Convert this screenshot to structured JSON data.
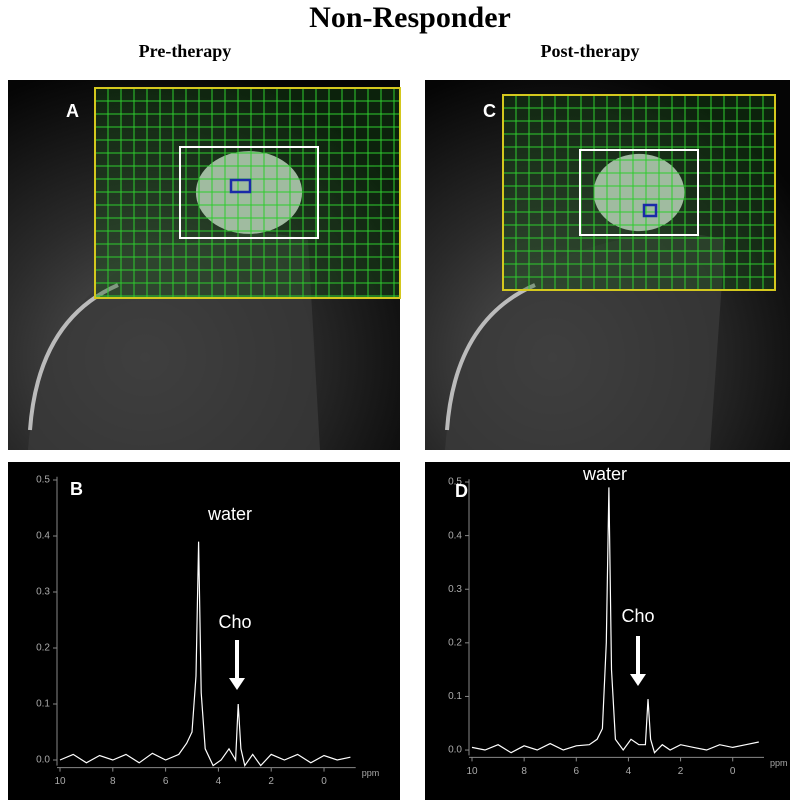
{
  "title": "Non-Responder",
  "panels": [
    {
      "heading": "Pre-therapy",
      "image_label": "A"
    },
    {
      "heading": "Post-therapy",
      "image_label": "C"
    }
  ],
  "chart_data": [
    {
      "type": "line",
      "label": "B",
      "annotations": [
        "water",
        "Cho"
      ],
      "x_label": "ppm",
      "x": [
        10,
        9.5,
        9,
        8.5,
        8,
        7.5,
        7,
        6.5,
        6,
        5.5,
        5.2,
        5.0,
        4.85,
        4.75,
        4.65,
        4.5,
        4.2,
        3.9,
        3.6,
        3.35,
        3.25,
        3.15,
        3.0,
        2.7,
        2.4,
        2,
        1.5,
        1,
        0.5,
        0,
        -0.5,
        -1
      ],
      "series": [
        {
          "color": "#ffffff",
          "values": [
            0.0,
            0.01,
            -0.005,
            0.008,
            0.0,
            0.01,
            -0.005,
            0.012,
            0.0,
            0.01,
            0.03,
            0.05,
            0.15,
            0.39,
            0.12,
            0.02,
            -0.01,
            0.0,
            0.02,
            0.0,
            0.1,
            0.02,
            -0.01,
            0.01,
            -0.01,
            0.01,
            0.0,
            0.01,
            -0.005,
            0.008,
            0.0,
            0.005
          ]
        }
      ],
      "xlim": [
        10,
        -1.2
      ],
      "xticks": [
        10,
        8,
        6,
        4,
        2,
        0
      ],
      "ylim": [
        -0.01,
        0.52
      ],
      "yticks": [
        {
          "value": 0,
          "label": "0.0"
        },
        0.1,
        0.2,
        0.3,
        0.4,
        0.5
      ]
    },
    {
      "type": "line",
      "label": "D",
      "annotations": [
        "water",
        "Cho"
      ],
      "x_label": "ppm",
      "x": [
        10,
        9.5,
        9,
        8.5,
        8,
        7.5,
        7,
        6.5,
        6,
        5.5,
        5.2,
        5.0,
        4.85,
        4.75,
        4.65,
        4.5,
        4.2,
        3.9,
        3.6,
        3.35,
        3.25,
        3.15,
        3.0,
        2.7,
        2.4,
        2,
        1.5,
        1,
        0.5,
        0,
        -0.5,
        -1
      ],
      "series": [
        {
          "color": "#ffffff",
          "values": [
            0.005,
            0.0,
            0.01,
            -0.005,
            0.008,
            0.0,
            0.012,
            0.0,
            0.008,
            0.01,
            0.02,
            0.04,
            0.2,
            0.49,
            0.15,
            0.02,
            0.0,
            0.02,
            0.01,
            0.01,
            0.095,
            0.02,
            -0.005,
            0.01,
            0.0,
            0.01,
            0.005,
            0.0,
            0.01,
            0.005,
            0.01,
            0.015
          ]
        }
      ],
      "xlim": [
        10,
        -1.2
      ],
      "xticks": [
        10,
        8,
        6,
        4,
        2,
        0
      ],
      "ylim": [
        -0.01,
        0.52
      ],
      "yticks": [
        {
          "value": 0,
          "label": "0.0"
        },
        0.1,
        0.2,
        0.3,
        0.4,
        0.5
      ]
    }
  ]
}
